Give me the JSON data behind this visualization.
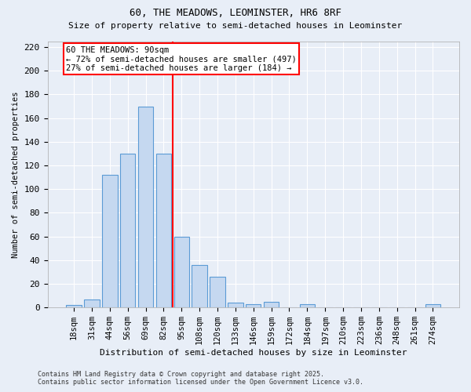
{
  "title_line1": "60, THE MEADOWS, LEOMINSTER, HR6 8RF",
  "title_line2": "Size of property relative to semi-detached houses in Leominster",
  "xlabel": "Distribution of semi-detached houses by size in Leominster",
  "ylabel": "Number of semi-detached properties",
  "categories": [
    "18sqm",
    "31sqm",
    "44sqm",
    "56sqm",
    "69sqm",
    "82sqm",
    "95sqm",
    "108sqm",
    "120sqm",
    "133sqm",
    "146sqm",
    "159sqm",
    "172sqm",
    "184sqm",
    "197sqm",
    "210sqm",
    "223sqm",
    "236sqm",
    "248sqm",
    "261sqm",
    "274sqm"
  ],
  "values": [
    2,
    7,
    112,
    130,
    170,
    130,
    60,
    36,
    26,
    4,
    3,
    5,
    0,
    3,
    0,
    0,
    0,
    0,
    0,
    0,
    3
  ],
  "bar_color": "#c5d8f0",
  "bar_edge_color": "#5b9bd5",
  "vline_color": "red",
  "vline_index": 6,
  "annotation_title": "60 THE MEADOWS: 90sqm",
  "annotation_line1": "← 72% of semi-detached houses are smaller (497)",
  "annotation_line2": "27% of semi-detached houses are larger (184) →",
  "annotation_box_color": "white",
  "annotation_box_edge_color": "red",
  "ylim": [
    0,
    225
  ],
  "yticks": [
    0,
    20,
    40,
    60,
    80,
    100,
    120,
    140,
    160,
    180,
    200,
    220
  ],
  "background_color": "#e8eef7",
  "title_fontsize": 9,
  "subtitle_fontsize": 8,
  "footer_line1": "Contains HM Land Registry data © Crown copyright and database right 2025.",
  "footer_line2": "Contains public sector information licensed under the Open Government Licence v3.0."
}
